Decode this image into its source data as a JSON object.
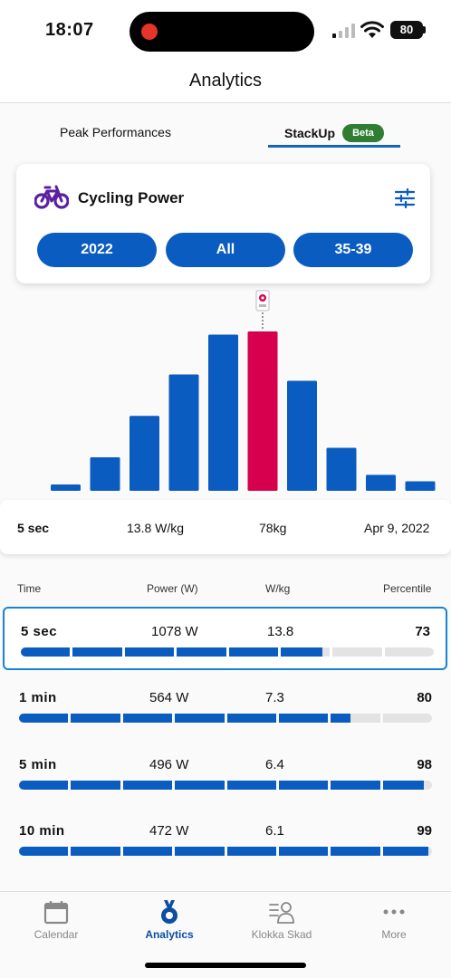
{
  "status_bar": {
    "time": "18:07",
    "battery": "80"
  },
  "header": {
    "title": "Analytics"
  },
  "tabs": [
    {
      "label": "Peak Performances",
      "active": false
    },
    {
      "label": "StackUp",
      "active": true,
      "badge": "Beta"
    }
  ],
  "card": {
    "title": "Cycling Power",
    "icon": "bike-icon",
    "filters": [
      "2022",
      "All",
      "35-39"
    ]
  },
  "chart_data": {
    "type": "bar",
    "values": [
      4,
      21,
      47,
      73,
      98,
      100,
      69,
      27,
      10,
      6
    ],
    "highlight_index": 5,
    "colors": {
      "default": "#0b5cc0",
      "highlight": "#d6004f"
    }
  },
  "selected_summary": {
    "duration": "5 sec",
    "wkg": "13.8 W/kg",
    "weight": "78kg",
    "date": "Apr 9, 2022"
  },
  "table": {
    "headers": {
      "time": "Time",
      "power": "Power (W)",
      "wkg": "W/kg",
      "percentile": "Percentile"
    },
    "rows": [
      {
        "time": "5 sec",
        "power": "1078 W",
        "wkg": "13.8",
        "percentile": "73",
        "selected": true
      },
      {
        "time": "1 min",
        "power": "564 W",
        "wkg": "7.3",
        "percentile": "80",
        "selected": false
      },
      {
        "time": "5 min",
        "power": "496 W",
        "wkg": "6.4",
        "percentile": "98",
        "selected": false
      },
      {
        "time": "10 min",
        "power": "472 W",
        "wkg": "6.1",
        "percentile": "99",
        "selected": false
      }
    ]
  },
  "nav": [
    {
      "label": "Calendar",
      "icon": "calendar-icon",
      "active": false
    },
    {
      "label": "Analytics",
      "icon": "medal-icon",
      "active": true
    },
    {
      "label": "Klokka Skad",
      "icon": "profile-list-icon",
      "active": false
    },
    {
      "label": "More",
      "icon": "more-icon",
      "active": false
    }
  ],
  "colors": {
    "accent": "#0b5cc0",
    "beta_badge": "#2e7d32",
    "highlight": "#d6004f",
    "bike_icon": "#5b1fa0"
  }
}
